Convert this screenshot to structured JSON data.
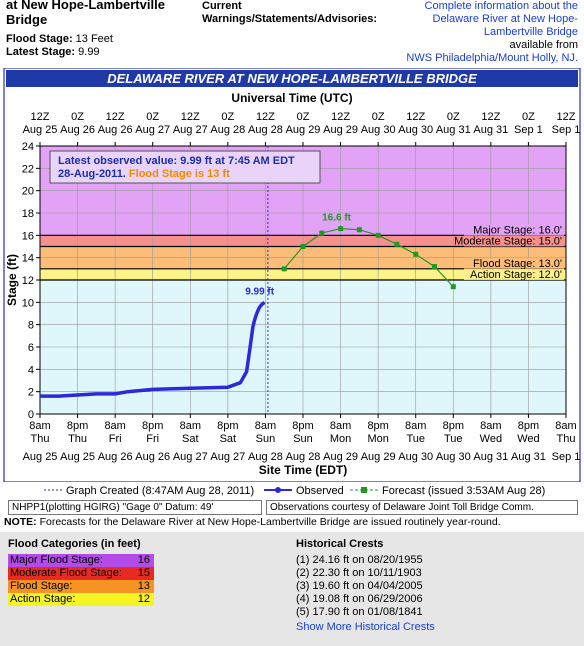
{
  "header": {
    "title": "at New Hope-Lambertville Bridge",
    "flood_stage_label": "Flood Stage:",
    "flood_stage_value": "13 Feet",
    "latest_stage_label": "Latest Stage:",
    "latest_stage_value": "9.99",
    "current_title_1": "Current",
    "current_title_2": "Warnings/Statements/Advisories:",
    "info_link": "Complete information about the Delaware River at New Hope-Lambertville Bridge",
    "available_from": "available from",
    "nws_link": "NWS Philadelphia/Mount Holly, NJ."
  },
  "chart_data": {
    "type": "line",
    "title": "DELAWARE RIVER AT NEW HOPE-LAMBERTVILLE BRIDGE",
    "top_axis_title": "Universal Time (UTC)",
    "xlabel": "Site Time (EDT)",
    "ylabel": "Stage (ft)",
    "ylim": [
      0,
      24
    ],
    "yticks": [
      0,
      2,
      4,
      6,
      8,
      10,
      12,
      14,
      16,
      18,
      20,
      22,
      24
    ],
    "grid": true,
    "top_ticks": [
      [
        "12Z",
        "Aug 25"
      ],
      [
        "0Z",
        "Aug 26"
      ],
      [
        "12Z",
        "Aug 26"
      ],
      [
        "0Z",
        "Aug 27"
      ],
      [
        "12Z",
        "Aug 27"
      ],
      [
        "0Z",
        "Aug 28"
      ],
      [
        "12Z",
        "Aug 28"
      ],
      [
        "0Z",
        "Aug 29"
      ],
      [
        "12Z",
        "Aug 29"
      ],
      [
        "0Z",
        "Aug 30"
      ],
      [
        "12Z",
        "Aug 30"
      ],
      [
        "0Z",
        "Aug 31"
      ],
      [
        "12Z",
        "Aug 31"
      ],
      [
        "0Z",
        "Sep 1"
      ],
      [
        "12Z",
        "Sep 1"
      ]
    ],
    "bottom_ticks": [
      [
        "8am",
        "Thu",
        "Aug 25"
      ],
      [
        "8pm",
        "Thu",
        "Aug 25"
      ],
      [
        "8am",
        "Fri",
        "Aug 26"
      ],
      [
        "8pm",
        "Fri",
        "Aug 26"
      ],
      [
        "8am",
        "Sat",
        "Aug 27"
      ],
      [
        "8pm",
        "Sat",
        "Aug 27"
      ],
      [
        "8am",
        "Sun",
        "Aug 28"
      ],
      [
        "8pm",
        "Sun",
        "Aug 28"
      ],
      [
        "8am",
        "Mon",
        "Aug 29"
      ],
      [
        "8pm",
        "Mon",
        "Aug 29"
      ],
      [
        "8am",
        "Tue",
        "Aug 30"
      ],
      [
        "8pm",
        "Tue",
        "Aug 30"
      ],
      [
        "8am",
        "Wed",
        "Aug 31"
      ],
      [
        "8pm",
        "Wed",
        "Aug 31"
      ],
      [
        "8am",
        "Thu",
        "Sep 1"
      ]
    ],
    "categories": [
      {
        "name": "Major Stage",
        "value": 16.0,
        "label": "Major Stage: 16.0'",
        "color": "#e2a2f5"
      },
      {
        "name": "Moderate Stage",
        "value": 15.0,
        "label": "Moderate Stage: 15.0'",
        "color": "#f6908d"
      },
      {
        "name": "Flood Stage",
        "value": 13.0,
        "label": "Flood Stage: 13.0'",
        "color": "#fbbd78"
      },
      {
        "name": "Action Stage",
        "value": 12.0,
        "label": "Action Stage: 12.0'",
        "color": "#fbf28a"
      }
    ],
    "latest_box": {
      "line1": "Latest observed value: 9.99 ft at 7:45 AM EDT",
      "line2a": "28-Aug-2011.",
      "line2b": "Flood Stage is 13 ft"
    },
    "graph_created_x": "Aug 28 08:47",
    "observed_peak_label": "9.99 ft",
    "forecast_peak_label": "16.6 ft",
    "series": [
      {
        "name": "Observed",
        "color": "#2a2ad8",
        "x": [
          "Aug 25 08:00",
          "Aug 25 14:00",
          "Aug 25 20:00",
          "Aug 26 02:00",
          "Aug 26 08:00",
          "Aug 26 12:00",
          "Aug 26 20:00",
          "Aug 27 08:00",
          "Aug 27 20:00",
          "Aug 28 00:00",
          "Aug 28 02:00",
          "Aug 28 03:00",
          "Aug 28 04:00",
          "Aug 28 04:30",
          "Aug 28 05:00",
          "Aug 28 05:30",
          "Aug 28 06:00",
          "Aug 28 06:30",
          "Aug 28 07:00",
          "Aug 28 07:45"
        ],
        "y": [
          1.6,
          1.6,
          1.7,
          1.8,
          1.8,
          2.0,
          2.2,
          2.3,
          2.4,
          2.8,
          3.8,
          5.8,
          7.8,
          8.4,
          8.8,
          9.2,
          9.5,
          9.7,
          9.85,
          9.99
        ]
      },
      {
        "name": "Forecast",
        "issued": "issued 3:53AM Aug 28",
        "color": "#229922",
        "x": [
          "Aug 28 14:00",
          "Aug 28 20:00",
          "Aug 29 02:00",
          "Aug 29 08:00",
          "Aug 29 14:00",
          "Aug 29 20:00",
          "Aug 30 02:00",
          "Aug 30 08:00",
          "Aug 30 14:00",
          "Aug 30 20:00"
        ],
        "y": [
          13.0,
          15.0,
          16.2,
          16.6,
          16.5,
          16.0,
          15.2,
          14.3,
          13.2,
          11.4
        ]
      }
    ]
  },
  "legend": {
    "graph_created": "Graph Created (8:47AM Aug 28, 2011)",
    "observed": "Observed",
    "forecast": "Forecast (issued 3:53AM Aug 28)"
  },
  "info": {
    "datum": "NHPP1(plotting HGIRG) \"Gage 0\" Datum: 49'",
    "courtesy": "Observations courtesy of Delaware Joint Toll Bridge Comm."
  },
  "note": {
    "label": "NOTE:",
    "text": "Forecasts for the Delaware River at New Hope-Lambertville Bridge are issued routinely year-round."
  },
  "flood_categories": {
    "title": "Flood Categories (in feet)",
    "rows": [
      {
        "label": "Major Flood Stage:",
        "value": "16",
        "color": "#b34be8"
      },
      {
        "label": "Moderate Flood Stage:",
        "value": "15",
        "color": "#e82b22"
      },
      {
        "label": "Flood Stage:",
        "value": "13",
        "color": "#f59423"
      },
      {
        "label": "Action Stage:",
        "value": "12",
        "color": "#f5f523"
      }
    ]
  },
  "historical_crests": {
    "title": "Historical Crests",
    "rows": [
      "(1) 24.16 ft on 08/20/1955",
      "(2) 22.30 ft on 10/11/1903",
      "(3) 19.60 ft on 04/04/2005",
      "(4) 19.08 ft on 06/29/2006",
      "(5) 17.90 ft on 01/08/1841"
    ],
    "more_link": "Show More Historical Crests"
  }
}
